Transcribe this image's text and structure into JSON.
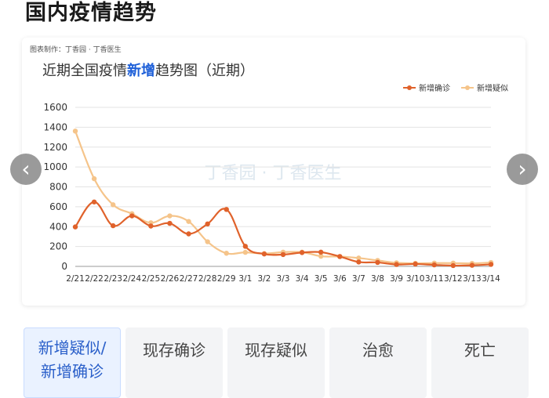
{
  "page": {
    "title": "国内疫情趋势"
  },
  "card": {
    "credit": "图表制作：丁香园 · 丁香医生",
    "watermark": "丁香园 · 丁香医生"
  },
  "chart_data": {
    "type": "line",
    "title_prefix": "近期全国疫情",
    "title_highlight": "新增",
    "title_suffix": "趋势图（近期）",
    "xlabel": "",
    "ylabel": "",
    "ylim": [
      0,
      1600
    ],
    "yticks": [
      0,
      200,
      400,
      600,
      800,
      1000,
      1200,
      1400,
      1600
    ],
    "grid": true,
    "legend_position": "top-right",
    "categories": [
      "2/21",
      "2/22",
      "2/23",
      "2/24",
      "2/25",
      "2/26",
      "2/27",
      "2/28",
      "2/29",
      "3/1",
      "3/2",
      "3/3",
      "3/4",
      "3/5",
      "3/6",
      "3/7",
      "3/8",
      "3/9",
      "3/10",
      "3/11",
      "3/12",
      "3/13",
      "3/14"
    ],
    "series": [
      {
        "name": "新增确诊",
        "color": "#e0622b",
        "values": [
          397,
          648,
          409,
          508,
          406,
          433,
          327,
          427,
          573,
          202,
          125,
          119,
          139,
          143,
          99,
          44,
          40,
          19,
          24,
          15,
          8,
          11,
          20
        ]
      },
      {
        "name": "新增疑似",
        "color": "#f5c48a",
        "values": [
          1361,
          882,
          620,
          530,
          439,
          508,
          452,
          248,
          132,
          141,
          129,
          143,
          143,
          102,
          99,
          84,
          60,
          36,
          31,
          33,
          33,
          30,
          39
        ]
      }
    ]
  },
  "nav": {
    "prev": "‹",
    "next": "›"
  },
  "tabs": [
    {
      "label_line1": "新增疑似/",
      "label_line2": "新增确诊"
    },
    {
      "label_line1": "现存确诊",
      "label_line2": ""
    },
    {
      "label_line1": "现存疑似",
      "label_line2": ""
    },
    {
      "label_line1": "治愈",
      "label_line2": ""
    },
    {
      "label_line1": "死亡",
      "label_line2": ""
    }
  ]
}
